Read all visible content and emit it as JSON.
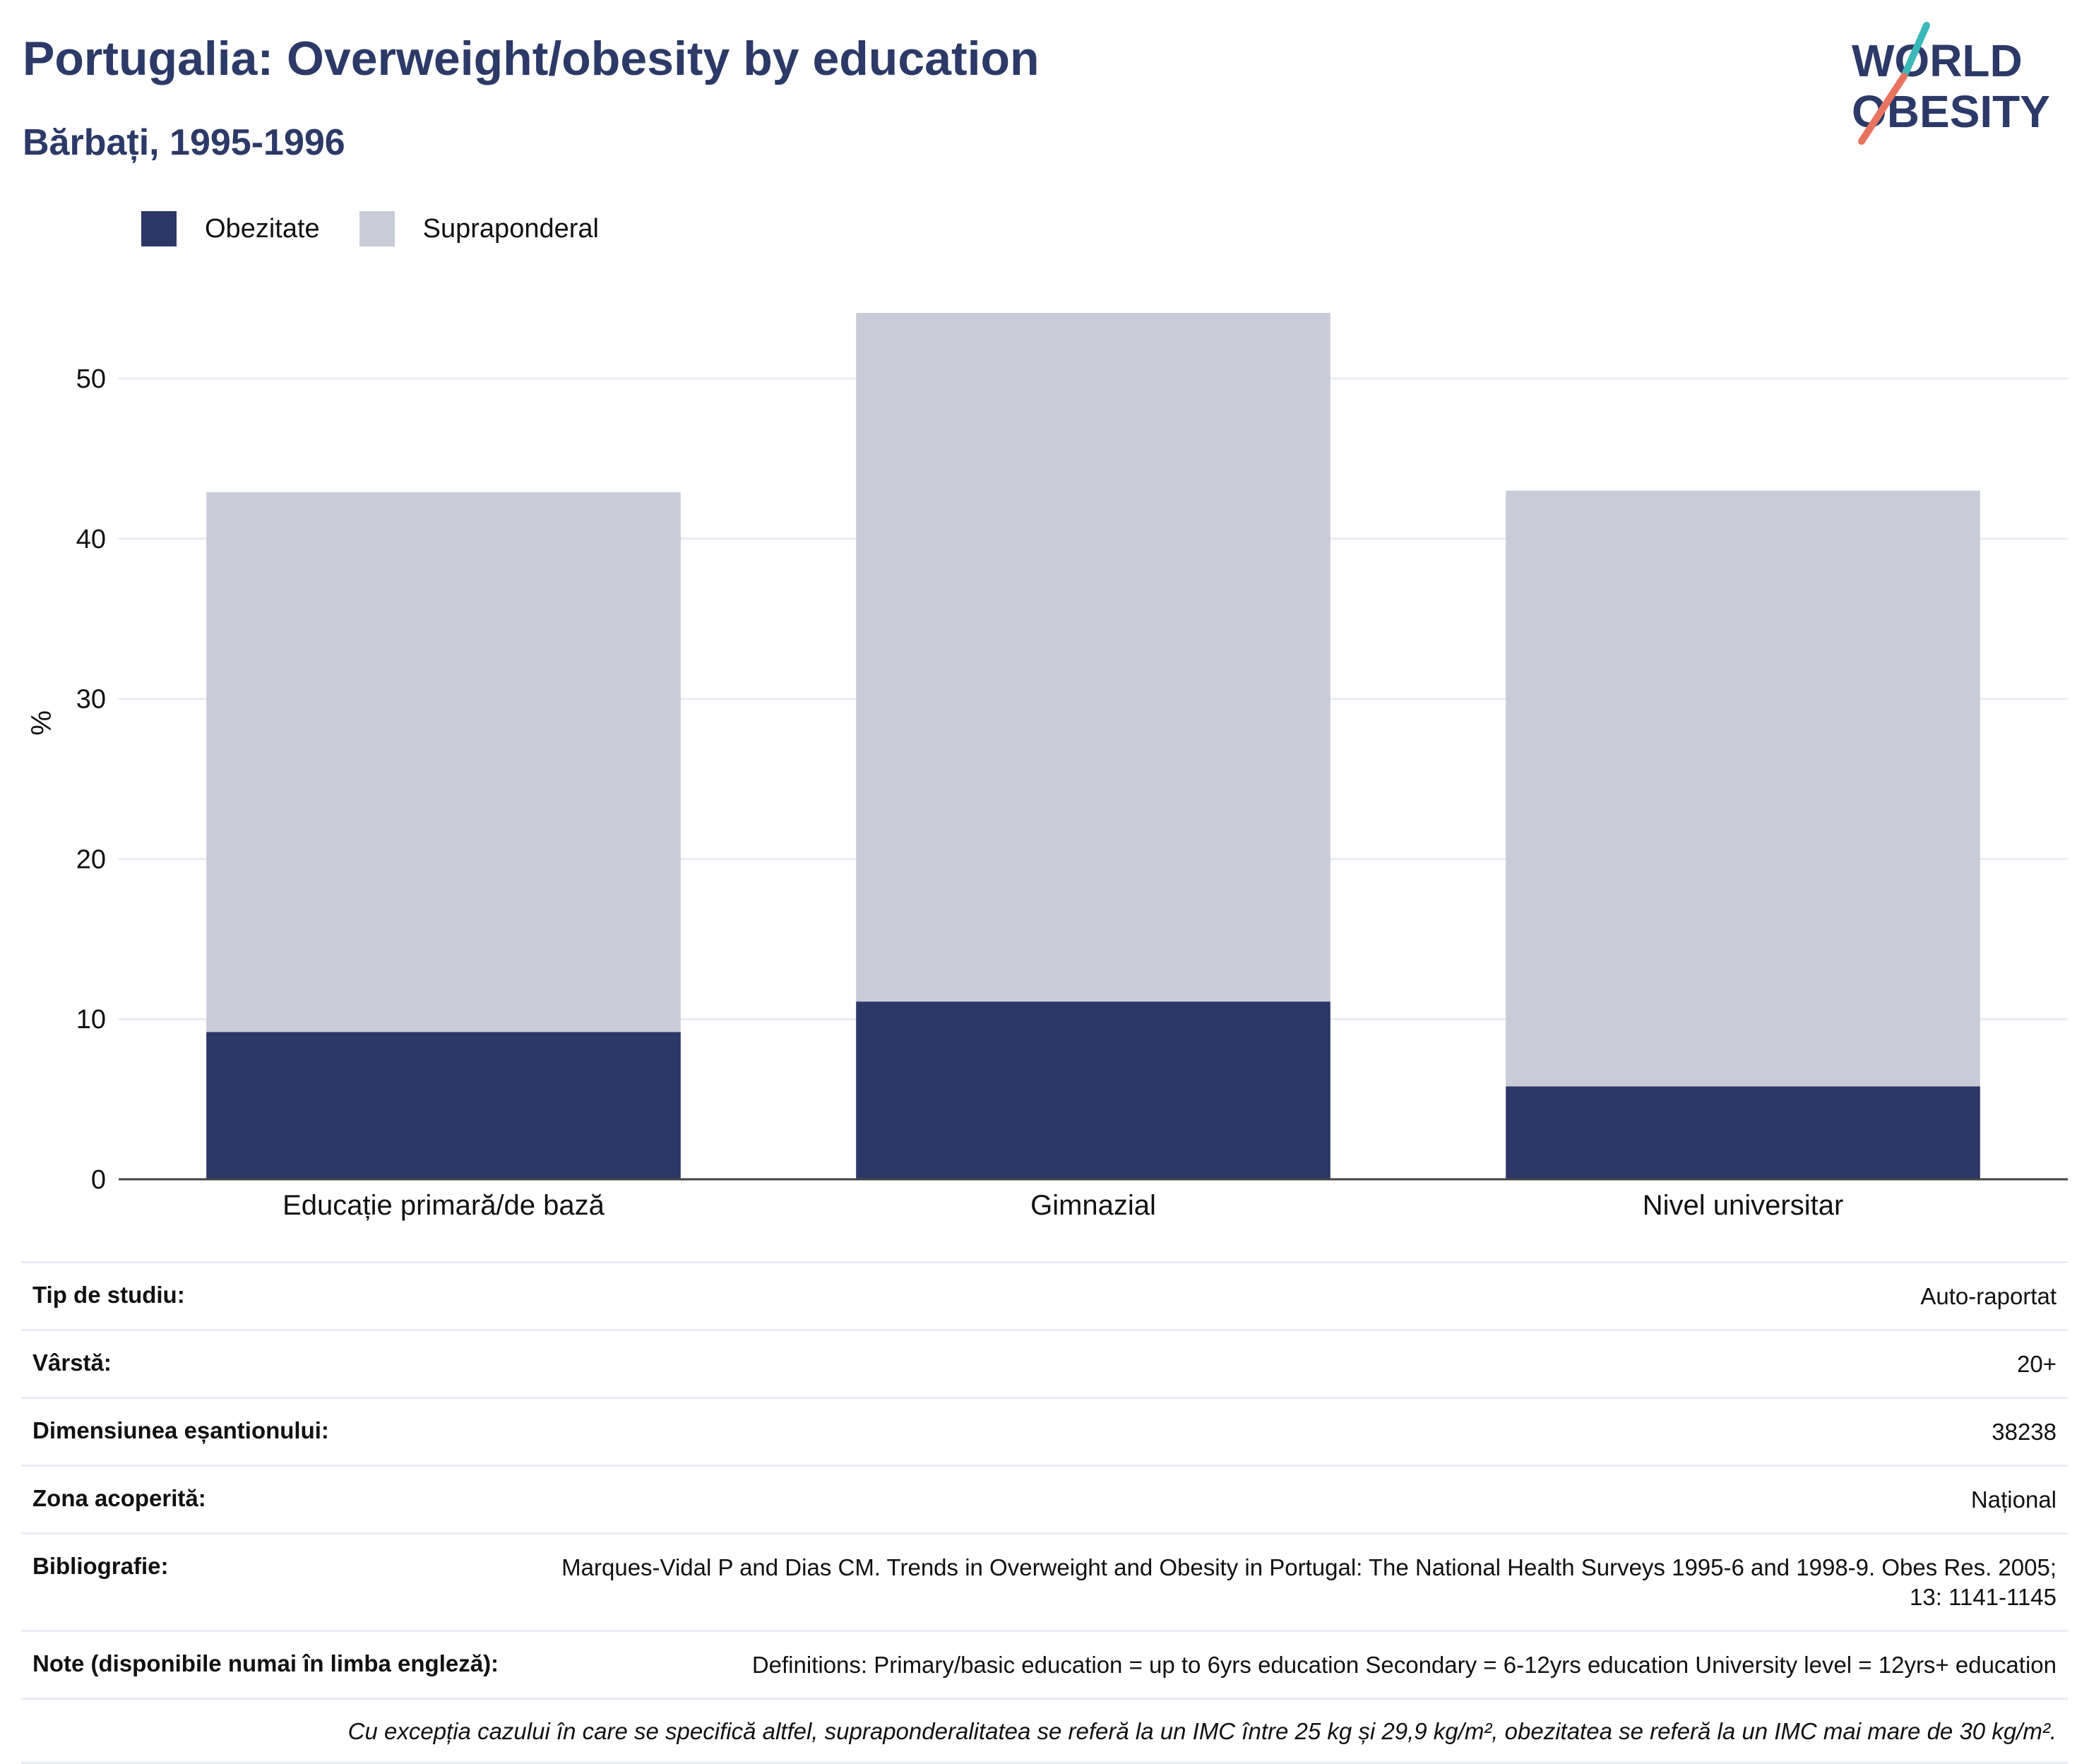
{
  "header": {
    "title": "Portugalia: Overweight/obesity by education",
    "subtitle": "Bărbați, 1995-1996"
  },
  "logo": {
    "line1": "WORLD",
    "line2": "OBESITY"
  },
  "colors": {
    "obesity": "#2b3766",
    "overweight": "#c9ccd8",
    "title": "#2b3a67",
    "logo_teal": "#3bb8b8",
    "logo_coral": "#e8735f"
  },
  "chart_data": {
    "type": "bar",
    "stacked": true,
    "categories": [
      "Educație primară/de bază",
      "Gimnazial",
      "Nivel universitar"
    ],
    "series": [
      {
        "name": "Obezitate",
        "values": [
          9.2,
          11.1,
          5.8
        ]
      },
      {
        "name": "Supraponderal",
        "values": [
          33.7,
          43.0,
          37.2
        ]
      }
    ],
    "ylabel": "%",
    "ylim": [
      0,
      56
    ],
    "yticks": [
      0,
      10,
      20,
      30,
      40,
      50
    ],
    "grid": true,
    "legend": "top-left"
  },
  "info": {
    "rows": [
      {
        "label": "Tip de studiu:",
        "value": "Auto-raportat"
      },
      {
        "label": "Vârstă:",
        "value": "20+"
      },
      {
        "label": "Dimensiunea eșantionului:",
        "value": "38238"
      },
      {
        "label": "Zona acoperită:",
        "value": "Național"
      },
      {
        "label": "Bibliografie:",
        "value": "Marques-Vidal P and Dias CM. Trends in Overweight and Obesity in Portugal: The National Health Surveys 1995-6 and 1998-9. Obes Res. 2005; 13: 1141-1145"
      },
      {
        "label": "Note (disponibile numai în limba engleză):",
        "value": "Definitions: Primary/basic education = up to 6yrs education Secondary = 6-12yrs education University level = 12yrs+ education"
      }
    ],
    "footnote": "Cu excepția cazului în care se specifică altfel, supraponderalitatea se referă la un IMC între 25 kg și 29,9 kg/m², obezitatea se referă la un IMC mai mare de 30 kg/m²."
  }
}
